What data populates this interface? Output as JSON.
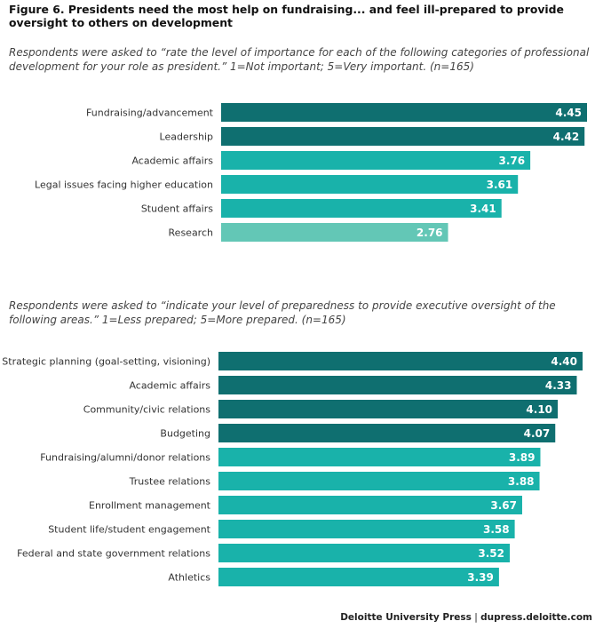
{
  "title": "Figure 6. Presidents need the most help on fundraising... and feel ill-prepared to provide oversight to others on development",
  "footer": {
    "publisher": "Deloitte University Press",
    "separator": "|",
    "site": "dupress.deloitte.com"
  },
  "colors": {
    "dark": "#0f6f70",
    "mid": "#19b2aa",
    "light": "#63c7b6"
  },
  "chart_data": [
    {
      "type": "bar",
      "orientation": "horizontal",
      "subtitle": "Respondents were asked to “rate the level of importance for each of the following categories of professional development for your role as president.” 1=Not important; 5=Very important. (n=165)",
      "categories": [
        "Fundraising/advancement",
        "Leadership",
        "Academic affairs",
        "Legal issues facing higher education",
        "Student affairs",
        "Research"
      ],
      "values": [
        4.45,
        4.42,
        3.76,
        3.61,
        3.41,
        2.76
      ],
      "value_labels": [
        "4.45",
        "4.42",
        "3.76",
        "3.61",
        "3.41",
        "2.76"
      ],
      "bar_colors": [
        "#0f6f70",
        "#0f6f70",
        "#19b2aa",
        "#19b2aa",
        "#19b2aa",
        "#63c7b6"
      ],
      "xlim": [
        0,
        4.45
      ]
    },
    {
      "type": "bar",
      "orientation": "horizontal",
      "subtitle": "Respondents were asked to “indicate your level of preparedness to provide executive oversight of the following areas.” 1=Less prepared; 5=More prepared. (n=165)",
      "categories": [
        "Strategic planning (goal-setting, visioning)",
        "Academic affairs",
        "Community/civic relations",
        "Budgeting",
        "Fundraising/alumni/donor relations",
        "Trustee relations",
        "Enrollment management",
        "Student life/student engagement",
        "Federal and state government relations",
        "Athletics"
      ],
      "values": [
        4.4,
        4.33,
        4.1,
        4.07,
        3.89,
        3.88,
        3.67,
        3.58,
        3.52,
        3.39
      ],
      "value_labels": [
        "4.40",
        "4.33",
        "4.10",
        "4.07",
        "3.89",
        "3.88",
        "3.67",
        "3.58",
        "3.52",
        "3.39"
      ],
      "bar_colors": [
        "#0f6f70",
        "#0f6f70",
        "#0f6f70",
        "#0f6f70",
        "#19b2aa",
        "#19b2aa",
        "#19b2aa",
        "#19b2aa",
        "#19b2aa",
        "#19b2aa"
      ],
      "xlim": [
        0,
        4.4
      ]
    }
  ]
}
